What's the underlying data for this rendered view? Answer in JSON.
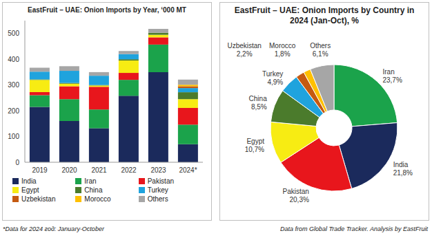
{
  "chart_data": [
    {
      "type": "bar",
      "title": "EastFruit – UAE: Onion Imports by Year, ‘000 MT",
      "categories": [
        "2019",
        "2020",
        "2021",
        "2022",
        "2023",
        "2024*"
      ],
      "series": [
        {
          "name": "India",
          "color": "#1b2a5c",
          "values": [
            215,
            160,
            132,
            258,
            350,
            70
          ]
        },
        {
          "name": "Iran",
          "color": "#1ba34b",
          "values": [
            45,
            85,
            73,
            62,
            107,
            76
          ]
        },
        {
          "name": "Pakistan",
          "color": "#e8161c",
          "values": [
            12,
            50,
            88,
            27,
            28,
            65
          ]
        },
        {
          "name": "Egypt",
          "color": "#f7ec13",
          "values": [
            48,
            10,
            5,
            48,
            10,
            34
          ]
        },
        {
          "name": "China",
          "color": "#4b7b2c",
          "values": [
            2,
            3,
            2,
            5,
            8,
            27
          ]
        },
        {
          "name": "Turkey",
          "color": "#1fa3dd",
          "values": [
            30,
            47,
            36,
            20,
            0,
            16
          ]
        },
        {
          "name": "Uzbekistan",
          "color": "#c55a11",
          "values": [
            0,
            0,
            0,
            0,
            0,
            7
          ]
        },
        {
          "name": "Morocco",
          "color": "#ffc000",
          "values": [
            0,
            0,
            0,
            0,
            0,
            6
          ]
        },
        {
          "name": "Others",
          "color": "#a6a6a6",
          "values": [
            15,
            18,
            14,
            12,
            15,
            20
          ]
        }
      ],
      "stacked": true,
      "ylim": [
        0,
        550
      ],
      "yticks": [
        0,
        100,
        200,
        300,
        400,
        500
      ],
      "grid": false,
      "legend": "bottom",
      "annotations": [
        "*Data for 2024 год: January-October"
      ]
    },
    {
      "type": "pie",
      "title": "EastFruit – UAE: Onion Imports by Country in 2024 (Jan-Oct), %",
      "categories": [
        "Iran",
        "India",
        "Pakistan",
        "Egypt",
        "China",
        "Turkey",
        "Uzbekistan",
        "Morocco",
        "Others"
      ],
      "values": [
        23.7,
        21.8,
        20.3,
        10.7,
        8.5,
        4.9,
        2.2,
        1.8,
        6.1
      ],
      "value_labels": [
        "23,7%",
        "21,8%",
        "20,3%",
        "10,7%",
        "8,5%",
        "4,9%",
        "2,2%",
        "1,8%",
        "6,1%"
      ],
      "colors": [
        "#1ba34b",
        "#1b2a5c",
        "#e8161c",
        "#f7ec13",
        "#4b7b2c",
        "#1fa3dd",
        "#c55a11",
        "#ffc000",
        "#a6a6a6"
      ],
      "data_labels": true,
      "annotations": [
        "Data from Global Trade Tracker. Analysis by EastFruit"
      ]
    }
  ]
}
